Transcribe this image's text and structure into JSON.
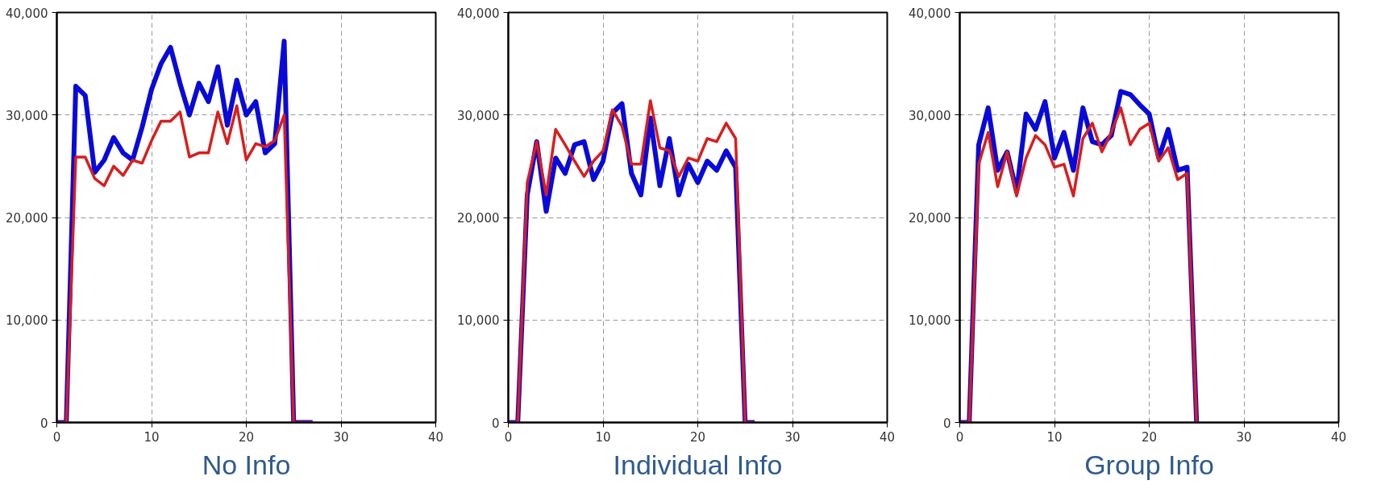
{
  "chart_data": [
    {
      "type": "line",
      "title": "No Info",
      "x": [
        0,
        1,
        2,
        3,
        4,
        5,
        6,
        7,
        8,
        9,
        10,
        11,
        12,
        13,
        14,
        15,
        16,
        17,
        18,
        19,
        20,
        21,
        22,
        23,
        24,
        25,
        26,
        27
      ],
      "xlim": [
        0,
        40
      ],
      "xticks": [
        0,
        10,
        20,
        30,
        40
      ],
      "ylim": [
        0,
        40000
      ],
      "yticks": [
        {
          "value": 0,
          "label": "0"
        },
        {
          "value": 10000,
          "label": "10,000"
        },
        {
          "value": 20000,
          "label": "20,000"
        },
        {
          "value": 30000,
          "label": "30,000"
        },
        {
          "value": 40000,
          "label": "40,000"
        }
      ],
      "grid": true,
      "line_style": "solid",
      "marker": "none",
      "series": [
        {
          "color": "#0a0ad8",
          "values": [
            0,
            0,
            32800,
            31900,
            24400,
            25600,
            27800,
            26300,
            25600,
            28800,
            32500,
            35000,
            36600,
            33100,
            30000,
            33100,
            31300,
            34700,
            29000,
            33400,
            30000,
            31300,
            26300,
            27200,
            37200,
            0,
            0,
            0
          ]
        },
        {
          "color": "#d81e1e",
          "values": [
            0,
            0,
            25900,
            25900,
            23800,
            23100,
            25000,
            24100,
            25600,
            25300,
            27500,
            29400,
            29400,
            30300,
            25900,
            26300,
            26300,
            30300,
            27200,
            30900,
            25600,
            27200,
            26900,
            27500,
            30000,
            0,
            0,
            0
          ]
        }
      ]
    },
    {
      "type": "line",
      "title": "Individual Info",
      "x": [
        0,
        1,
        2,
        3,
        4,
        5,
        6,
        7,
        8,
        9,
        10,
        11,
        12,
        13,
        14,
        15,
        16,
        17,
        18,
        19,
        20,
        21,
        22,
        23,
        24,
        25,
        26
      ],
      "xlim": [
        0,
        40
      ],
      "xticks": [
        0,
        10,
        20,
        30,
        40
      ],
      "ylim": [
        0,
        40000
      ],
      "yticks": [
        {
          "value": 0,
          "label": "0"
        },
        {
          "value": 10000,
          "label": "10,000"
        },
        {
          "value": 20000,
          "label": "20,000"
        },
        {
          "value": 30000,
          "label": "30,000"
        },
        {
          "value": 40000,
          "label": "40,000"
        }
      ],
      "grid": true,
      "line_style": "solid",
      "marker": "none",
      "series": [
        {
          "color": "#0a0ad8",
          "values": [
            0,
            0,
            22200,
            27400,
            20600,
            25800,
            24300,
            27100,
            27400,
            23700,
            25500,
            30200,
            31100,
            24300,
            22200,
            29700,
            23100,
            27700,
            22200,
            25200,
            23400,
            25500,
            24600,
            26500,
            24900,
            0,
            0
          ]
        },
        {
          "color": "#d81e1e",
          "values": [
            0,
            0,
            23400,
            27400,
            22200,
            28600,
            27100,
            25500,
            24000,
            25500,
            26500,
            30500,
            28900,
            25200,
            25200,
            31400,
            26800,
            26500,
            24000,
            25800,
            25500,
            27700,
            27400,
            29200,
            27700,
            0,
            0
          ]
        }
      ]
    },
    {
      "type": "line",
      "title": "Group Info",
      "x": [
        0,
        1,
        2,
        3,
        4,
        5,
        6,
        7,
        8,
        9,
        10,
        11,
        12,
        13,
        14,
        15,
        16,
        17,
        18,
        19,
        20,
        21,
        22,
        23,
        24,
        25
      ],
      "xlim": [
        0,
        40
      ],
      "xticks": [
        0,
        10,
        20,
        30,
        40
      ],
      "ylim": [
        0,
        40000
      ],
      "yticks": [
        {
          "value": 0,
          "label": "0"
        },
        {
          "value": 10000,
          "label": "10,000"
        },
        {
          "value": 20000,
          "label": "20,000"
        },
        {
          "value": 30000,
          "label": "30,000"
        },
        {
          "value": 40000,
          "label": "40,000"
        }
      ],
      "grid": true,
      "line_style": "solid",
      "marker": "none",
      "series": [
        {
          "color": "#0a0ad8",
          "values": [
            0,
            0,
            27100,
            30700,
            24600,
            26400,
            22500,
            30100,
            28600,
            31300,
            25800,
            28300,
            24600,
            30700,
            27400,
            27100,
            28000,
            32300,
            32000,
            31000,
            30100,
            25800,
            28600,
            24600,
            24900,
            0
          ]
        },
        {
          "color": "#d81e1e",
          "values": [
            0,
            0,
            25200,
            28300,
            23000,
            26400,
            22100,
            25800,
            28000,
            27100,
            24900,
            25200,
            22100,
            27700,
            29200,
            26400,
            28300,
            30700,
            27100,
            28600,
            29200,
            25500,
            26800,
            23700,
            24300,
            0
          ]
        }
      ]
    }
  ]
}
